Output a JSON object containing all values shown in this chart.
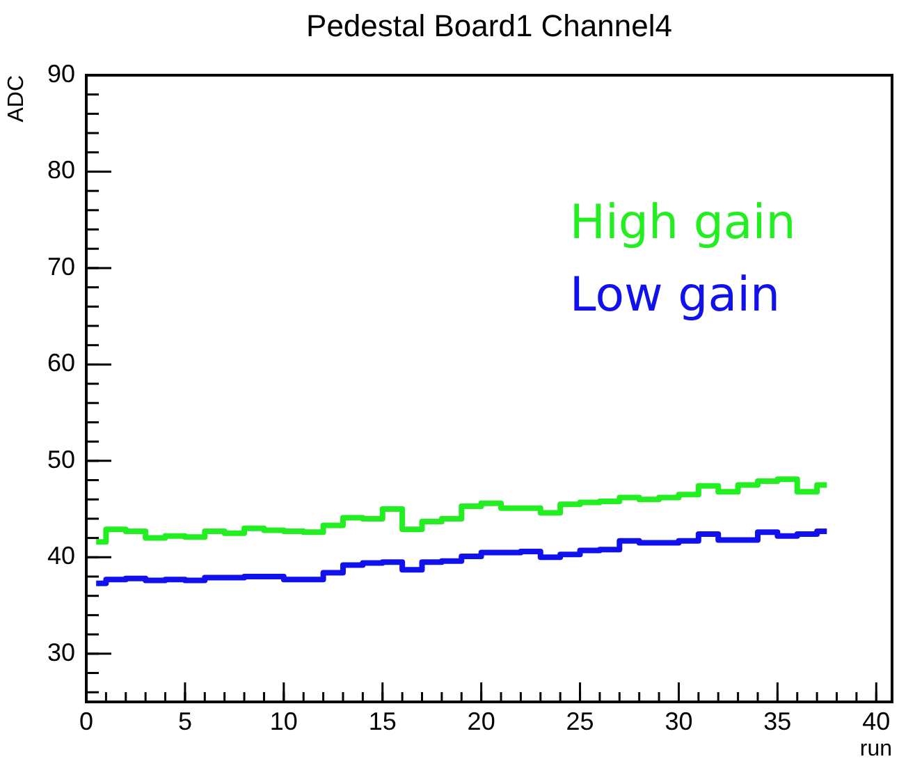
{
  "chart_data": {
    "type": "step",
    "title": "Pedestal Board1 Channel4",
    "xlabel": "run",
    "ylabel": "ADC",
    "x": [
      0.5,
      1.5,
      2.5,
      3.5,
      4.5,
      5.5,
      6.5,
      7.5,
      8.5,
      9.5,
      10.5,
      11.5,
      12.5,
      13.5,
      14.5,
      15.5,
      16.5,
      17.5,
      18.5,
      19.5,
      20.5,
      21.5,
      22.5,
      23.5,
      24.5,
      25.5,
      26.5,
      27.5,
      28.5,
      29.5,
      30.5,
      31.5,
      32.5,
      33.5,
      34.5,
      35.5,
      36.5,
      37.5
    ],
    "series": [
      {
        "name": "High gain",
        "color": "#22ee22",
        "values": [
          41.6,
          42.9,
          42.7,
          42.0,
          42.2,
          42.1,
          42.7,
          42.5,
          43.0,
          42.8,
          42.7,
          42.6,
          43.3,
          44.1,
          44.0,
          45.0,
          42.9,
          43.7,
          44.0,
          45.3,
          45.6,
          45.1,
          45.1,
          44.6,
          45.5,
          45.7,
          45.8,
          46.2,
          46.0,
          46.2,
          46.5,
          47.4,
          46.8,
          47.5,
          47.9,
          48.1,
          46.8,
          47.5
        ]
      },
      {
        "name": "Low gain",
        "color": "#1111ee",
        "values": [
          37.3,
          37.7,
          37.8,
          37.6,
          37.7,
          37.6,
          37.9,
          37.9,
          38.0,
          38.0,
          37.7,
          37.7,
          38.4,
          39.2,
          39.4,
          39.5,
          38.7,
          39.5,
          39.6,
          40.1,
          40.5,
          40.5,
          40.6,
          40.0,
          40.3,
          40.7,
          40.8,
          41.7,
          41.5,
          41.5,
          41.7,
          42.4,
          41.8,
          41.8,
          42.6,
          42.2,
          42.4,
          42.7
        ]
      }
    ],
    "xlim": [
      0,
      40.8
    ],
    "xticks": [
      0,
      5,
      10,
      15,
      20,
      25,
      30,
      35,
      40
    ],
    "ylim": [
      25,
      90
    ],
    "yticks": [
      30,
      40,
      50,
      60,
      70,
      80,
      90
    ],
    "legend": "top right",
    "grid": false,
    "marker": "none",
    "line_style": "solid"
  }
}
